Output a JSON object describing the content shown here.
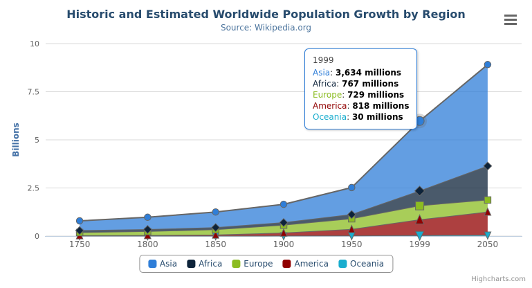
{
  "chart_data": {
    "type": "area",
    "stacking": "normal",
    "title": "Historic and Estimated Worldwide Population Growth by Region",
    "subtitle": "Source: Wikipedia.org",
    "ylabel": "Billions",
    "xlabel": "",
    "unit": "millions",
    "categories": [
      "1750",
      "1800",
      "1850",
      "1900",
      "1950",
      "1999",
      "2050"
    ],
    "ylim": [
      0,
      10
    ],
    "yticks": [
      "0",
      "2.5",
      "5",
      "7.5",
      "10"
    ],
    "grid": "horizontal",
    "legend_position": "bottom",
    "stack_order_bottom_to_top": [
      "Oceania",
      "America",
      "Europe",
      "Africa",
      "Asia"
    ],
    "series": [
      {
        "name": "Asia",
        "color": "#2f7ed8",
        "marker": "circle",
        "values": [
          502,
          635,
          809,
          947,
          1402,
          3634,
          5268
        ]
      },
      {
        "name": "Africa",
        "color": "#0d233a",
        "marker": "diamond",
        "values": [
          106,
          107,
          111,
          133,
          221,
          767,
          1766
        ]
      },
      {
        "name": "Europe",
        "color": "#8bbc21",
        "marker": "square",
        "values": [
          163,
          203,
          276,
          408,
          547,
          729,
          628
        ]
      },
      {
        "name": "America",
        "color": "#910000",
        "marker": "triangle",
        "values": [
          18,
          31,
          54,
          156,
          339,
          818,
          1201
        ]
      },
      {
        "name": "Oceania",
        "color": "#1aadce",
        "marker": "triangle-down",
        "values": [
          2,
          2,
          2,
          6,
          13,
          30,
          46
        ]
      }
    ],
    "hover": {
      "category": "1999",
      "category_index": 5,
      "hovered_series": "Asia"
    }
  },
  "tooltip": {
    "header": "1999",
    "rows": [
      {
        "label": "Asia",
        "value": "3,634 millions"
      },
      {
        "label": "Africa",
        "value": "767 millions"
      },
      {
        "label": "Europe",
        "value": "729 millions"
      },
      {
        "label": "America",
        "value": "818 millions"
      },
      {
        "label": "Oceania",
        "value": "30 millions"
      }
    ]
  },
  "credits": "Highcharts.com",
  "colors": {
    "line": "#666666",
    "grid": "#d8d8d8",
    "axis_line": "#c0d0e0",
    "tick_label": "#606060",
    "title": "#274b6d",
    "subtitle": "#4d759e",
    "y_title": "#4572a7",
    "legend_text": "#274b6d",
    "legend_border": "#909090",
    "credits": "#909090",
    "tooltip_border": "#2f7ed8",
    "fill_opacity": 0.75
  }
}
